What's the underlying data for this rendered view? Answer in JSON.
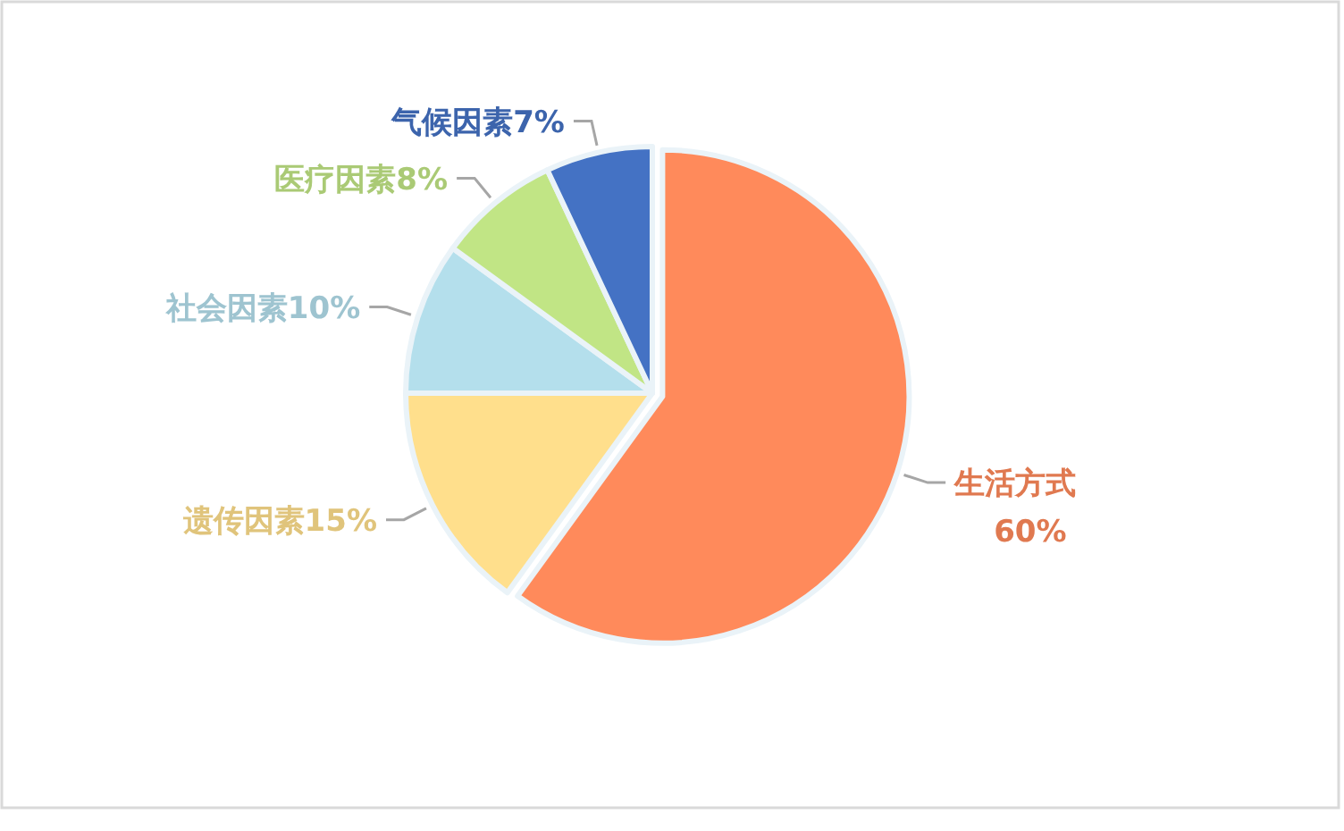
{
  "chart_data": {
    "type": "pie",
    "categories": [
      "生活方式",
      "遗传因素",
      "社会因素",
      "医疗因素",
      "气候因素"
    ],
    "values": [
      60,
      15,
      10,
      8,
      7
    ],
    "colors": [
      "#ff8a5b",
      "#ffdf8c",
      "#b4dfec",
      "#c1e585",
      "#4472c4"
    ],
    "value_labels": [
      "60%",
      "15%",
      "10%",
      "8%",
      "7%"
    ]
  }
}
